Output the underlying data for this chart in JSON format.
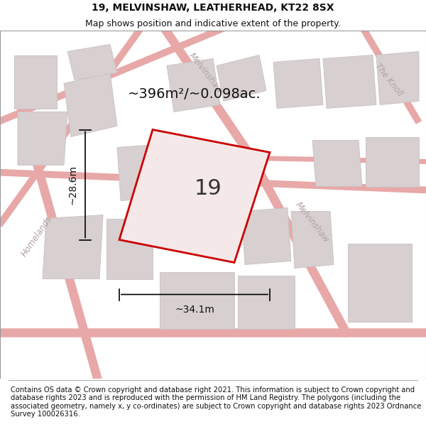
{
  "title": "19, MELVINSHAW, LEATHERHEAD, KT22 8SX",
  "subtitle": "Map shows position and indicative extent of the property.",
  "footer": "Contains OS data © Crown copyright and database right 2021. This information is subject to Crown copyright and database rights 2023 and is reproduced with the permission of HM Land Registry. The polygons (including the associated geometry, namely x, y co-ordinates) are subject to Crown copyright and database rights 2023 Ordnance Survey 100026316.",
  "area_text": "~396m²/~0.098ac.",
  "width_text": "~34.1m",
  "height_text": "~28.6m",
  "plot_number": "19",
  "map_bg": "#f0eded",
  "road_color": "#e8a8a8",
  "building_fill": "#d8d0d0",
  "building_edge": "#c8c0c0",
  "plot_outline_color": "#cc0000",
  "plot_fill": "#f5e8e8",
  "title_fontsize": 10,
  "subtitle_fontsize": 9,
  "footer_fontsize": 7.2,
  "figsize": [
    6.0,
    6.25
  ],
  "dpi": 100,
  "street_color": "#c8a0a0",
  "street_label_color": "#b0a0a0"
}
